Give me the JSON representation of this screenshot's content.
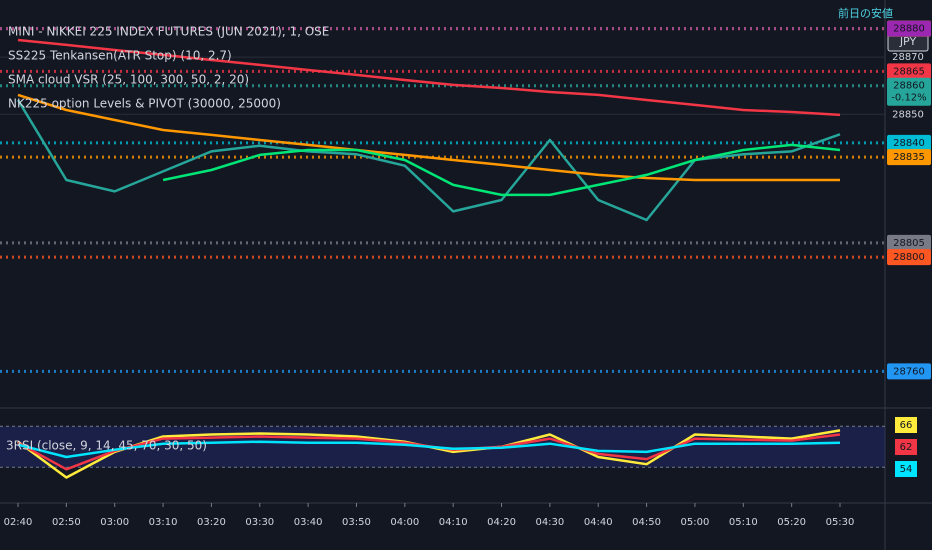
{
  "chart_data": [
    {
      "type": "line",
      "title": "MINI - NIKKEI 225 INDEX FUTURES (JUN 2021), 1, OSE",
      "indicators": [
        "SS225 Tenkansen(ATR Stop) (10, 2.7)",
        "SMA cloud VSR (25, 100, 300, 50, 2, 20)",
        "NK225 option Levels & PIVOT (30000, 25000)"
      ],
      "currency": "JPY",
      "level_note": "前日の安値",
      "x": [
        "02:40",
        "02:50",
        "03:00",
        "03:10",
        "03:20",
        "03:30",
        "03:40",
        "03:50",
        "04:00",
        "04:10",
        "04:20",
        "04:30",
        "04:40",
        "04:50",
        "05:00",
        "05:10",
        "05:20",
        "05:30"
      ],
      "series": [
        {
          "color": "#26a69a",
          "values": [
            28855,
            28827,
            28823,
            28830,
            28837,
            28839,
            28837,
            28836,
            28832,
            28816,
            28820,
            28841,
            28820,
            28813,
            28834,
            28836,
            28837,
            28843
          ]
        },
        {
          "color": "#f23645",
          "values": [
            28876,
            28874.3,
            28872.5,
            28870.8,
            28869,
            28867.3,
            28865.5,
            28863.8,
            28862,
            28860.3,
            28859.2,
            28857.8,
            28856.8,
            28855,
            28853.3,
            28851.5,
            28850.8,
            28849.8
          ]
        },
        {
          "color": "#ff9800",
          "values": [
            28856.8,
            28851.5,
            28848,
            28844.5,
            28842.8,
            28841,
            28839.3,
            28837.5,
            28835.8,
            28834,
            28832.3,
            28830.5,
            28828.8,
            28827.7,
            28827,
            28827,
            28827,
            28827
          ]
        },
        {
          "color": "#00e676",
          "values": [
            null,
            null,
            null,
            28827,
            28830.5,
            28835.8,
            28837.5,
            28837.5,
            28834,
            28825.3,
            28821.8,
            28821.8,
            28825.3,
            28828.8,
            28834,
            28837.5,
            28839.3,
            28837.5
          ]
        }
      ],
      "ylim": [
        28750,
        28890
      ],
      "yticks": [
        28850,
        28870
      ],
      "price_badges": [
        {
          "value": 28880,
          "color": "#ffff00"
        },
        {
          "value": 28880,
          "color": "#9c27b0"
        },
        {
          "value": 28865,
          "color": "#f23645"
        },
        {
          "value": 28860,
          "color": "#26a69a",
          "change": "-0.12%"
        },
        {
          "value": 28840,
          "color": "#00bcd4"
        },
        {
          "value": 28835,
          "color": "#ff9800"
        },
        {
          "value": 28805,
          "color": "#787b86"
        },
        {
          "value": 28800,
          "color": "#ff5722"
        },
        {
          "value": 28760,
          "color": "#2196f3"
        }
      ]
    },
    {
      "type": "line",
      "title": "3RSI (close, 9, 14, 45, 70, 30, 50)",
      "x": [
        "02:40",
        "02:50",
        "03:00",
        "03:10",
        "03:20",
        "03:30",
        "03:40",
        "03:50",
        "04:00",
        "04:10",
        "04:20",
        "04:30",
        "04:40",
        "04:50",
        "05:00",
        "05:10",
        "05:20",
        "05:30"
      ],
      "series": [
        {
          "color": "#ffeb3b",
          "values": [
            55,
            20,
            45,
            60,
            62,
            63,
            62,
            60,
            55,
            45,
            50,
            62,
            40,
            33,
            62,
            60,
            58,
            66
          ]
        },
        {
          "color": "#f23645",
          "values": [
            54,
            28,
            46,
            58,
            59,
            60,
            59,
            58,
            54,
            47,
            50,
            58,
            43,
            38,
            58,
            57,
            56,
            62
          ]
        },
        {
          "color": "#00e5ff",
          "values": [
            52,
            40,
            47,
            53,
            54,
            55,
            54,
            54,
            52,
            48,
            49,
            53,
            46,
            45,
            53,
            53,
            53,
            54
          ]
        }
      ],
      "ylim": [
        -2,
        83
      ],
      "guide_lines": [
        70,
        30
      ]
    }
  ]
}
